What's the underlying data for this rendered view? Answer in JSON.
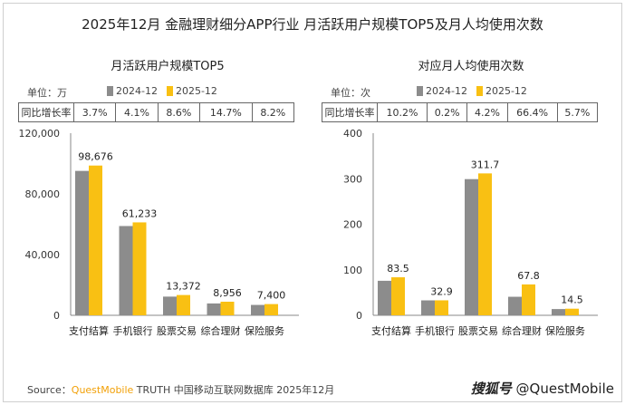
{
  "title": "2025年12月 金融理财细分APP行业 月活跃用户规模TOP5及月人均使用次数",
  "colors": {
    "gray": "#8c8c8c",
    "yellow": "#f9c013",
    "brand": "#f2a007"
  },
  "legend": {
    "s1": "2024-12",
    "s2": "2025-12"
  },
  "growth_label": "同比增长率",
  "left": {
    "subtitle": "月活跃用户规模TOP5",
    "unit": "单位：万",
    "growth": [
      "3.7%",
      "4.1%",
      "8.6%",
      "14.7%",
      "8.2%"
    ]
  },
  "right": {
    "subtitle": "对应月人均使用次数",
    "unit": "单位：次",
    "growth": [
      "10.2%",
      "0.2%",
      "4.2%",
      "66.4%",
      "5.7%"
    ]
  },
  "chart_data": [
    {
      "type": "bar",
      "title": "月活跃用户规模TOP5",
      "categories": [
        "支付结算",
        "手机银行",
        "股票交易",
        "综合理财",
        "保险服务"
      ],
      "series": [
        {
          "name": "2024-12",
          "values": [
            95152,
            58822,
            12313,
            7808,
            6839
          ]
        },
        {
          "name": "2025-12",
          "values": [
            98676,
            61233,
            13372,
            8956,
            7400
          ]
        }
      ],
      "labels": [
        "98,676",
        "61,233",
        "13,372",
        "8,956",
        "7,400"
      ],
      "yticks": [
        "0",
        "40,000",
        "80,000",
        "120,000"
      ],
      "ylim": [
        0,
        120000
      ]
    },
    {
      "type": "bar",
      "title": "对应月人均使用次数",
      "categories": [
        "支付结算",
        "手机银行",
        "股票交易",
        "综合理财",
        "保险服务"
      ],
      "series": [
        {
          "name": "2024-12",
          "values": [
            75.8,
            32.8,
            299.1,
            40.7,
            13.7
          ]
        },
        {
          "name": "2025-12",
          "values": [
            83.5,
            32.9,
            311.7,
            67.8,
            14.5
          ]
        }
      ],
      "labels": [
        "83.5",
        "32.9",
        "311.7",
        "67.8",
        "14.5"
      ],
      "yticks": [
        "0",
        "100",
        "200",
        "300",
        "400"
      ],
      "ylim": [
        0,
        400
      ]
    }
  ],
  "source": {
    "prefix": "Source：",
    "brand": "QuestMobile",
    "rest": " TRUTH 中国移动互联网数据库 2025年12月"
  },
  "watermark": {
    "a": "搜狐号",
    "b": " @QuestMobile"
  }
}
